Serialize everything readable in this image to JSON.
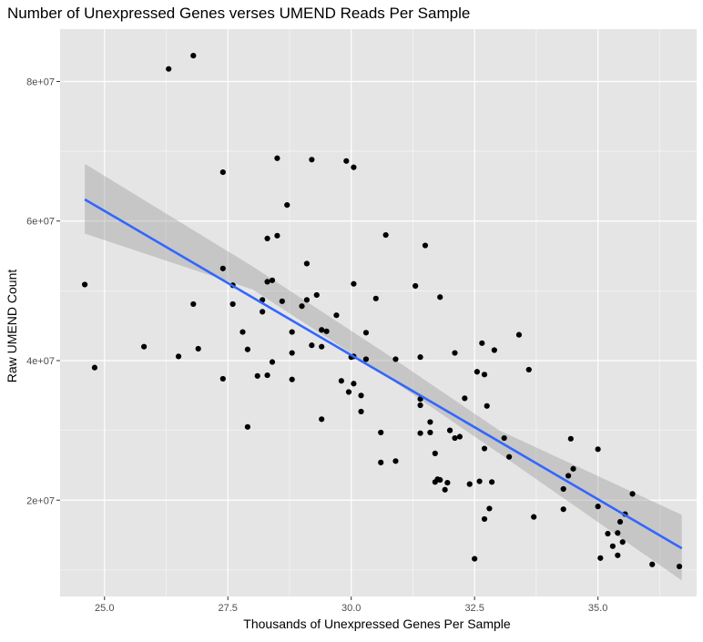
{
  "chart_data": {
    "type": "scatter",
    "title": "Number of Unexpressed Genes verses UMEND Reads Per Sample",
    "xlabel": "Thousands of Unexpressed Genes Per Sample",
    "ylabel": "Raw UMEND Count",
    "xlim": [
      24.1,
      37.0
    ],
    "ylim": [
      6200000,
      87500000
    ],
    "x_ticks": [
      25.0,
      27.5,
      30.0,
      32.5,
      35.0
    ],
    "x_tick_labels": [
      "25.0",
      "27.5",
      "30.0",
      "32.5",
      "35.0"
    ],
    "y_ticks": [
      20000000,
      40000000,
      60000000,
      80000000
    ],
    "y_tick_labels": [
      "2e+07",
      "4e+07",
      "6e+07",
      "8e+07"
    ],
    "grid": true,
    "background_color": "#e5e5e5",
    "grid_color": "#ffffff",
    "point_color": "#000000",
    "line_color": "#3366ff",
    "ribbon_color": "#999999",
    "regression": {
      "method": "linear",
      "start": [
        24.6,
        63100000
      ],
      "end": [
        36.7,
        13100000
      ],
      "confidence_band": [
        {
          "x": 24.6,
          "lower": 58200000,
          "upper": 68200000
        },
        {
          "x": 28.0,
          "lower": 50200000,
          "upper": 53500000
        },
        {
          "x": 30.6,
          "lower": 38300000,
          "upper": 41500000
        },
        {
          "x": 33.0,
          "lower": 26700000,
          "upper": 30000000
        },
        {
          "x": 36.7,
          "lower": 8500000,
          "upper": 17900000
        }
      ]
    },
    "points": [
      [
        24.6,
        50900000
      ],
      [
        24.8,
        39000000
      ],
      [
        25.8,
        42000000
      ],
      [
        26.3,
        81800000
      ],
      [
        26.5,
        40600000
      ],
      [
        26.8,
        83700000
      ],
      [
        26.8,
        48100000
      ],
      [
        26.9,
        41700000
      ],
      [
        27.4,
        53200000
      ],
      [
        27.4,
        67000000
      ],
      [
        27.4,
        37400000
      ],
      [
        27.6,
        50800000
      ],
      [
        27.6,
        48100000
      ],
      [
        27.8,
        44100000
      ],
      [
        27.9,
        41600000
      ],
      [
        27.9,
        30500000
      ],
      [
        28.1,
        37800000
      ],
      [
        28.2,
        47000000
      ],
      [
        28.3,
        57500000
      ],
      [
        28.3,
        37900000
      ],
      [
        28.3,
        51300000
      ],
      [
        28.4,
        51500000
      ],
      [
        28.4,
        39800000
      ],
      [
        28.2,
        48700000
      ],
      [
        28.5,
        57900000
      ],
      [
        28.5,
        69000000
      ],
      [
        28.6,
        48500000
      ],
      [
        28.7,
        62300000
      ],
      [
        28.8,
        41100000
      ],
      [
        28.8,
        37300000
      ],
      [
        28.8,
        44100000
      ],
      [
        29.0,
        47800000
      ],
      [
        29.1,
        48700000
      ],
      [
        29.1,
        53900000
      ],
      [
        29.2,
        68800000
      ],
      [
        29.2,
        42200000
      ],
      [
        29.3,
        49400000
      ],
      [
        29.4,
        42000000
      ],
      [
        29.4,
        44400000
      ],
      [
        29.4,
        31600000
      ],
      [
        29.5,
        44200000
      ],
      [
        29.7,
        46500000
      ],
      [
        29.8,
        37100000
      ],
      [
        29.9,
        68600000
      ],
      [
        29.95,
        35500000
      ],
      [
        30.0,
        40500000
      ],
      [
        30.05,
        67700000
      ],
      [
        30.05,
        40600000
      ],
      [
        30.05,
        36700000
      ],
      [
        30.05,
        51000000
      ],
      [
        30.2,
        35000000
      ],
      [
        30.2,
        32700000
      ],
      [
        30.3,
        40200000
      ],
      [
        30.3,
        44000000
      ],
      [
        30.5,
        48900000
      ],
      [
        30.6,
        29700000
      ],
      [
        30.6,
        25400000
      ],
      [
        30.7,
        58000000
      ],
      [
        30.9,
        40200000
      ],
      [
        30.9,
        25600000
      ],
      [
        31.3,
        50700000
      ],
      [
        31.4,
        29600000
      ],
      [
        31.4,
        34500000
      ],
      [
        31.4,
        33600000
      ],
      [
        31.4,
        40500000
      ],
      [
        31.5,
        56500000
      ],
      [
        31.6,
        29700000
      ],
      [
        31.6,
        31200000
      ],
      [
        31.7,
        26700000
      ],
      [
        31.7,
        22600000
      ],
      [
        31.75,
        23000000
      ],
      [
        31.8,
        49100000
      ],
      [
        31.8,
        22900000
      ],
      [
        31.9,
        21500000
      ],
      [
        31.95,
        22500000
      ],
      [
        32.0,
        30000000
      ],
      [
        32.1,
        41100000
      ],
      [
        32.1,
        28900000
      ],
      [
        32.2,
        29100000
      ],
      [
        32.3,
        34600000
      ],
      [
        32.4,
        22300000
      ],
      [
        32.5,
        11600000
      ],
      [
        32.55,
        38400000
      ],
      [
        32.6,
        22700000
      ],
      [
        32.65,
        42500000
      ],
      [
        32.7,
        38000000
      ],
      [
        32.7,
        27400000
      ],
      [
        32.7,
        17300000
      ],
      [
        32.75,
        33500000
      ],
      [
        32.8,
        18800000
      ],
      [
        32.85,
        22600000
      ],
      [
        32.9,
        41500000
      ],
      [
        33.1,
        28900000
      ],
      [
        33.2,
        26200000
      ],
      [
        33.4,
        43700000
      ],
      [
        33.6,
        38700000
      ],
      [
        33.7,
        17600000
      ],
      [
        34.3,
        21600000
      ],
      [
        34.3,
        18700000
      ],
      [
        34.4,
        23500000
      ],
      [
        34.45,
        28800000
      ],
      [
        34.5,
        24500000
      ],
      [
        35.0,
        27300000
      ],
      [
        35.0,
        19100000
      ],
      [
        35.05,
        11700000
      ],
      [
        35.2,
        15200000
      ],
      [
        35.3,
        13400000
      ],
      [
        35.4,
        12100000
      ],
      [
        35.4,
        15300000
      ],
      [
        35.45,
        16900000
      ],
      [
        35.5,
        14000000
      ],
      [
        35.55,
        18000000
      ],
      [
        35.7,
        20900000
      ],
      [
        36.1,
        10800000
      ],
      [
        36.65,
        10500000
      ]
    ]
  }
}
